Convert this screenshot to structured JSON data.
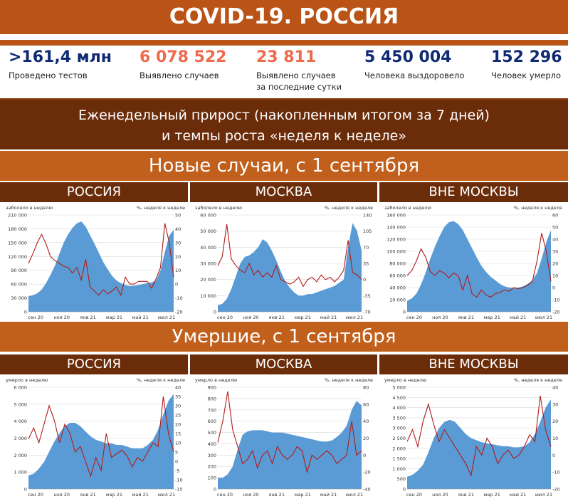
{
  "header": {
    "title": "COVID-19. РОССИЯ"
  },
  "stats": [
    {
      "value": ">161,4 млн",
      "label1": "Проведено тестов",
      "label2": "",
      "color": "#0e2a72"
    },
    {
      "value": "6 078 522",
      "label1": "Выявлено случаев",
      "label2": "",
      "color": "#ef6a4b"
    },
    {
      "value": "23 811",
      "label1": "Выявлено случаев",
      "label2": "за последние сутки",
      "color": "#ef6a4b"
    },
    {
      "value": "5 450 004",
      "label1": "Человека выздоровело",
      "label2": "",
      "color": "#0e2a72"
    },
    {
      "value": "152 296",
      "label1": "Человек умерло",
      "label2": "",
      "color": "#0e2a72"
    }
  ],
  "weekly": {
    "line1": "Еженедельный прирост (накопленным итогом за 7 дней)",
    "line2": "и темпы роста «неделя к неделе»"
  },
  "sections": {
    "cases": "Новые случаи, с 1 сентября",
    "deaths": "Умершие, с 1 сентября"
  },
  "columns": [
    "РОССИЯ",
    "МОСКВА",
    "ВНЕ МОСКВЫ"
  ],
  "colors": {
    "area": "#5b9bd5",
    "line": "#b01b1b",
    "orange": "#c1601c",
    "brown": "#6b2c0a"
  },
  "chart_data": [
    {
      "type": "area",
      "region": "РОССИЯ",
      "left_caption": "заболело в неделю",
      "right_caption": "%, неделя к неделе",
      "x_ticks": [
        "сен 20",
        "ноя 20",
        "янв 21",
        "мар 21",
        "май 21",
        "июл 21"
      ],
      "y_ticks": [
        "0",
        "30 000",
        "60 000",
        "90 000",
        "120 000",
        "150 000",
        "180 000",
        "210 000"
      ],
      "ylim": [
        0,
        210000
      ],
      "y2_ticks": [
        "-20",
        "-10",
        "0",
        "10",
        "20",
        "30",
        "40",
        "50"
      ],
      "y2lim": [
        -20,
        50
      ],
      "series": [
        {
          "values": [
            34000,
            36000,
            40000,
            48000,
            62000,
            80000,
            100000,
            125000,
            150000,
            168000,
            182000,
            192000,
            196000,
            185000,
            166000,
            148000,
            128000,
            108000,
            92000,
            78000,
            68000,
            62000,
            58000,
            56000,
            57000,
            58000,
            60000,
            62000,
            64000,
            68000,
            90000,
            130000,
            165000,
            178000
          ]
        },
        {
          "values": [
            15,
            22,
            30,
            36,
            29,
            20,
            17,
            15,
            13,
            12,
            8,
            12,
            3,
            18,
            -2,
            -5,
            -8,
            -4,
            -7,
            -5,
            -2,
            -8,
            5,
            0,
            0,
            2,
            2,
            2,
            -3,
            4,
            12,
            44,
            30,
            5
          ]
        }
      ]
    },
    {
      "type": "area",
      "region": "МОСКВА",
      "left_caption": "заболело в неделю",
      "right_caption": "%, неделя к неделе",
      "x_ticks": [
        "сен 20",
        "ноя 20",
        "янв 21",
        "мар 21",
        "май 21",
        "июл 21"
      ],
      "y_ticks": [
        "0",
        "10 000",
        "20 000",
        "30 000",
        "40 000",
        "50 000",
        "60 000"
      ],
      "ylim": [
        0,
        60000
      ],
      "y2_ticks": [
        "-70",
        "-35",
        "0",
        "35",
        "70",
        "105",
        "140"
      ],
      "y2lim": [
        -70,
        140
      ],
      "series": [
        {
          "values": [
            4000,
            5000,
            8000,
            14000,
            22000,
            30000,
            34000,
            35000,
            37000,
            40000,
            45000,
            43000,
            38000,
            32000,
            25000,
            19000,
            15000,
            12000,
            10000,
            10000,
            11000,
            11000,
            12000,
            13000,
            14000,
            15000,
            16000,
            18000,
            20000,
            40000,
            55000,
            50000,
            38000
          ]
        },
        {
          "values": [
            30,
            50,
            120,
            45,
            30,
            20,
            15,
            35,
            10,
            20,
            5,
            15,
            5,
            30,
            0,
            -5,
            -10,
            -5,
            5,
            -15,
            0,
            5,
            -5,
            10,
            0,
            5,
            -5,
            5,
            20,
            85,
            15,
            10,
            0
          ]
        }
      ]
    },
    {
      "type": "area",
      "region": "ВНЕ МОСКВЫ",
      "left_caption": "заболело в неделю",
      "right_caption": "%, неделя к неделе",
      "x_ticks": [
        "сен 20",
        "ноя 20",
        "янв 21",
        "мар 21",
        "май 21",
        "июл 21"
      ],
      "y_ticks": [
        "0",
        "20 000",
        "40 000",
        "60 000",
        "80 000",
        "100 000",
        "120 000",
        "140 000",
        "160 000"
      ],
      "ylim": [
        0,
        160000
      ],
      "y2_ticks": [
        "-20",
        "-10",
        "0",
        "10",
        "20",
        "30",
        "40",
        "50",
        "60"
      ],
      "y2lim": [
        -20,
        60
      ],
      "series": [
        {
          "values": [
            18000,
            22000,
            30000,
            45000,
            65000,
            88000,
            108000,
            125000,
            140000,
            148000,
            150000,
            145000,
            135000,
            120000,
            105000,
            90000,
            76000,
            66000,
            58000,
            52000,
            46000,
            42000,
            40000,
            39000,
            40000,
            42000,
            46000,
            52000,
            64000,
            88000,
            115000,
            135000
          ]
        },
        {
          "values": [
            10,
            14,
            22,
            32,
            25,
            13,
            10,
            14,
            12,
            8,
            12,
            10,
            -2,
            10,
            -5,
            -8,
            -2,
            -6,
            -8,
            -5,
            -4,
            -2,
            -3,
            0,
            -1,
            0,
            2,
            5,
            22,
            45,
            30,
            5
          ]
        }
      ]
    },
    {
      "type": "area",
      "region": "РОССИЯ",
      "left_caption": "умерло в неделю",
      "right_caption": "%, неделя к неделе",
      "x_ticks": [
        "сен 20",
        "ноя 20",
        "янв 21",
        "мар 21",
        "май 21",
        "июл 21"
      ],
      "y_ticks": [
        "0",
        "1 000",
        "2 000",
        "3 000",
        "4 000",
        "5 000",
        "6 000"
      ],
      "ylim": [
        0,
        6000
      ],
      "y2_ticks": [
        "-15",
        "-10",
        "-5",
        "0",
        "5",
        "10",
        "15",
        "20",
        "25",
        "30",
        "35",
        "40"
      ],
      "y2lim": [
        -15,
        40
      ],
      "series": [
        {
          "values": [
            800,
            900,
            1200,
            1600,
            2200,
            2800,
            3300,
            3700,
            3900,
            3900,
            3700,
            3400,
            3100,
            2900,
            2800,
            2700,
            2700,
            2600,
            2600,
            2500,
            2400,
            2400,
            2400,
            2600,
            2900,
            3500,
            4400,
            5200,
            5600
          ]
        },
        {
          "values": [
            12,
            18,
            10,
            20,
            30,
            22,
            10,
            20,
            15,
            5,
            8,
            0,
            -8,
            2,
            -5,
            15,
            2,
            4,
            6,
            3,
            -3,
            2,
            0,
            5,
            10,
            8,
            35,
            15,
            5
          ]
        }
      ]
    },
    {
      "type": "area",
      "region": "МОСКВА",
      "left_caption": "умерло в неделю",
      "right_caption": "%, неделя к неделе",
      "x_ticks": [
        "сен 20",
        "ноя 20",
        "янв 21",
        "мар 21",
        "май 21",
        "июл 21"
      ],
      "y_ticks": [
        "0",
        "100",
        "200",
        "300",
        "400",
        "500",
        "600",
        "700",
        "800",
        "900"
      ],
      "ylim": [
        0,
        900
      ],
      "y2_ticks": [
        "-40",
        "-20",
        "0",
        "20",
        "40",
        "60",
        "80"
      ],
      "y2lim": [
        -40,
        80
      ],
      "series": [
        {
          "values": [
            100,
            100,
            130,
            200,
            350,
            480,
            510,
            520,
            520,
            520,
            510,
            500,
            500,
            500,
            490,
            480,
            470,
            460,
            450,
            440,
            430,
            420,
            420,
            430,
            460,
            500,
            560,
            700,
            780,
            740
          ]
        },
        {
          "values": [
            15,
            40,
            75,
            30,
            10,
            -10,
            -5,
            5,
            -15,
            0,
            5,
            -10,
            10,
            0,
            -5,
            0,
            10,
            5,
            -20,
            0,
            -5,
            0,
            5,
            0,
            -10,
            -5,
            0,
            40,
            0,
            5
          ]
        }
      ]
    },
    {
      "type": "area",
      "region": "ВНЕ МОСКВЫ",
      "left_caption": "умерло в неделю",
      "right_caption": "%, неделя к неделе",
      "x_ticks": [
        "сен 20",
        "ноя 20",
        "янв 21",
        "мар 21",
        "май 21",
        "июл 21"
      ],
      "y_ticks": [
        "0",
        "500",
        "1 000",
        "1 500",
        "2 000",
        "2 500",
        "3 000",
        "3 500",
        "4 000",
        "4 500",
        "5 000"
      ],
      "ylim": [
        0,
        5000
      ],
      "y2_ticks": [
        "-20",
        "-10",
        "0",
        "10",
        "20",
        "30",
        "40"
      ],
      "y2lim": [
        -20,
        40
      ],
      "series": [
        {
          "values": [
            600,
            700,
            900,
            1200,
            1800,
            2500,
            3000,
            3300,
            3400,
            3300,
            3000,
            2700,
            2500,
            2400,
            2300,
            2250,
            2200,
            2150,
            2100,
            2100,
            2050,
            2050,
            2100,
            2300,
            2700,
            3300,
            4000,
            4400
          ]
        },
        {
          "values": [
            8,
            15,
            5,
            20,
            30,
            18,
            8,
            15,
            10,
            5,
            0,
            -5,
            -12,
            5,
            0,
            10,
            5,
            -5,
            0,
            3,
            -2,
            0,
            5,
            12,
            8,
            35,
            15,
            5
          ]
        }
      ]
    }
  ]
}
